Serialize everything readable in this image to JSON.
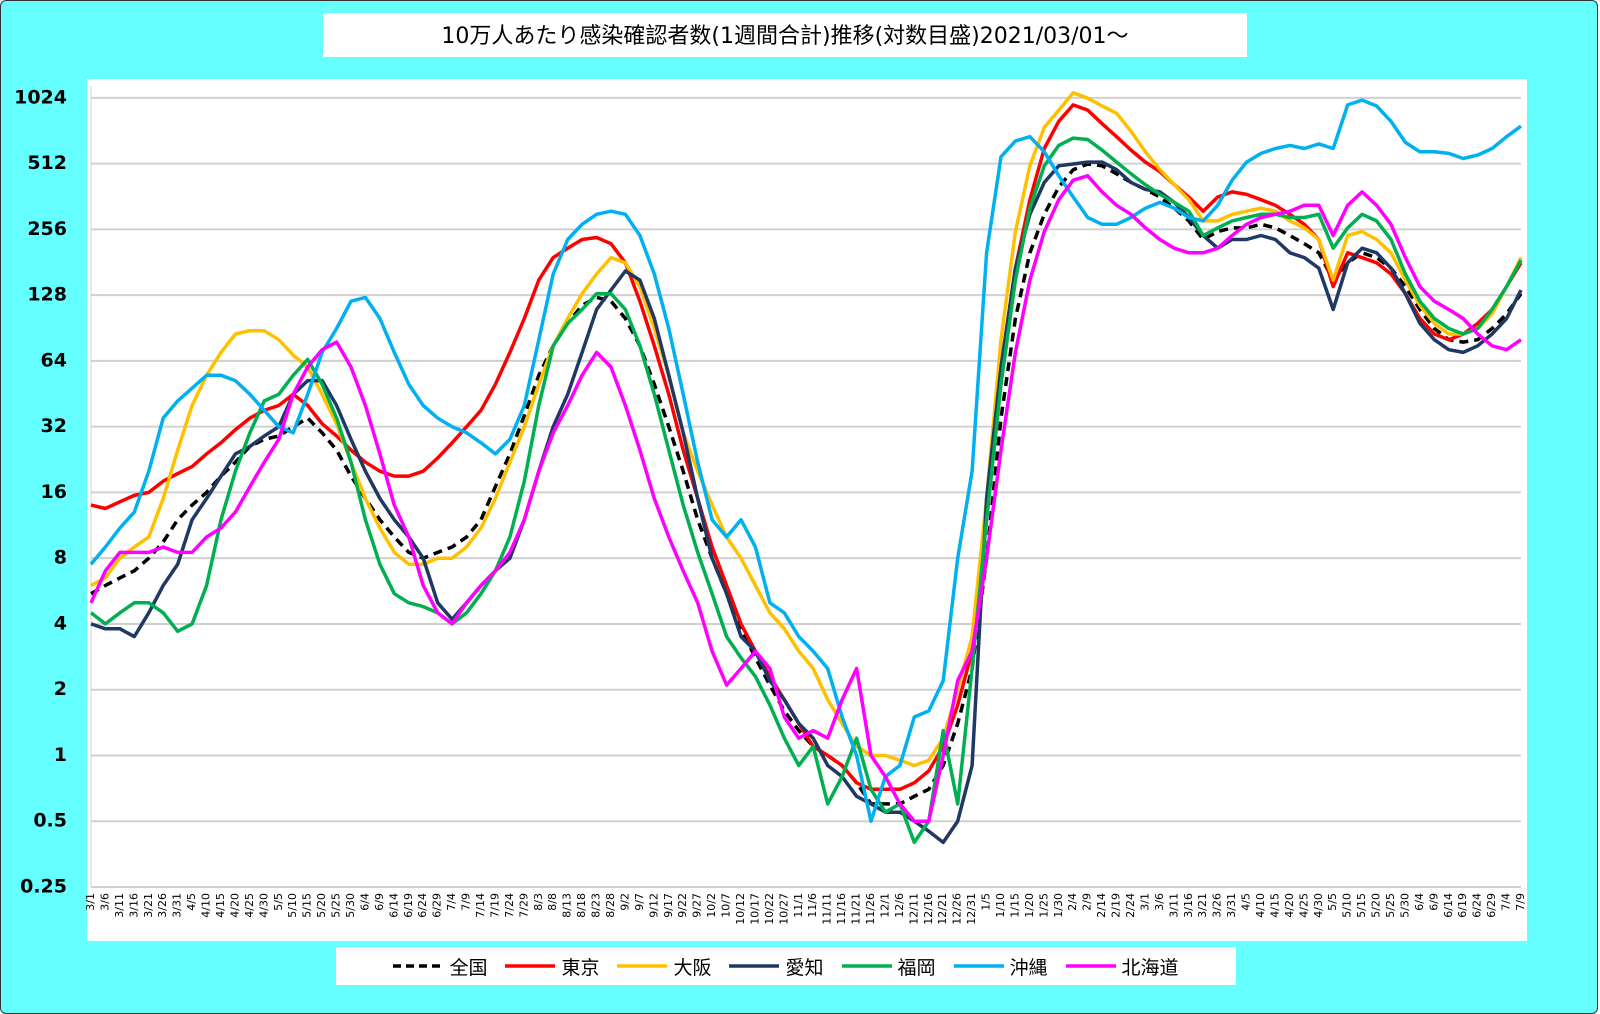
{
  "chart_data": {
    "type": "line",
    "title": "10万人あたり感染確認者数(1週間合計)推移(対数目盛)2021/03/01～",
    "categories": [
      "3/1",
      "3/6",
      "3/11",
      "3/16",
      "3/21",
      "3/26",
      "3/31",
      "4/5",
      "4/10",
      "4/15",
      "4/20",
      "4/25",
      "4/30",
      "5/5",
      "5/10",
      "5/15",
      "5/20",
      "5/25",
      "5/30",
      "6/4",
      "6/9",
      "6/14",
      "6/19",
      "6/24",
      "6/29",
      "7/4",
      "7/9",
      "7/14",
      "7/19",
      "7/24",
      "7/29",
      "8/3",
      "8/8",
      "8/13",
      "8/18",
      "8/23",
      "8/28",
      "9/2",
      "9/7",
      "9/12",
      "9/17",
      "9/22",
      "9/27",
      "10/2",
      "10/7",
      "10/12",
      "10/17",
      "10/22",
      "10/27",
      "11/1",
      "11/6",
      "11/11",
      "11/16",
      "11/21",
      "11/26",
      "12/1",
      "12/6",
      "12/11",
      "12/16",
      "12/21",
      "12/26",
      "12/31",
      "1/5",
      "1/10",
      "1/15",
      "1/20",
      "1/25",
      "1/30",
      "2/4",
      "2/9",
      "2/14",
      "2/19",
      "2/24",
      "3/1",
      "3/6",
      "3/11",
      "3/16",
      "3/21",
      "3/26",
      "3/31",
      "4/5",
      "4/10",
      "4/15",
      "4/20",
      "4/25",
      "4/30",
      "5/5",
      "5/10",
      "5/15",
      "5/20",
      "5/25",
      "5/30",
      "6/4",
      "6/9",
      "6/14",
      "6/19",
      "6/24",
      "6/29",
      "7/4",
      "7/9"
    ],
    "series": [
      {
        "name": "全国",
        "color": "#000000",
        "style": "dashed",
        "values": [
          5.5,
          6,
          6.5,
          7,
          8,
          9.5,
          12,
          14,
          16,
          19,
          22,
          26,
          28,
          29,
          32,
          35,
          30,
          25,
          19,
          15,
          12,
          10,
          8.5,
          8,
          8.5,
          9,
          10,
          12,
          17,
          24,
          36,
          55,
          75,
          95,
          115,
          125,
          120,
          100,
          75,
          50,
          32,
          20,
          12,
          8,
          5.5,
          3.8,
          2.8,
          2.1,
          1.6,
          1.3,
          1.1,
          1.0,
          0.9,
          0.75,
          0.6,
          0.6,
          0.6,
          0.65,
          0.7,
          0.9,
          1.4,
          2.5,
          8,
          35,
          100,
          200,
          300,
          400,
          480,
          510,
          500,
          460,
          420,
          390,
          360,
          320,
          280,
          230,
          250,
          260,
          260,
          270,
          260,
          240,
          220,
          200,
          150,
          180,
          200,
          190,
          170,
          140,
          110,
          90,
          80,
          78,
          80,
          90,
          105,
          130
        ]
      },
      {
        "name": "東京",
        "color": "#ff0000",
        "style": "solid",
        "values": [
          14,
          13.5,
          14.5,
          15.5,
          16,
          18,
          19.5,
          21,
          24,
          27,
          31,
          35,
          38,
          40,
          45,
          40,
          33,
          29,
          25,
          22,
          20,
          19,
          19,
          20,
          23,
          27,
          32,
          38,
          50,
          70,
          100,
          150,
          190,
          210,
          230,
          235,
          220,
          180,
          120,
          75,
          45,
          25,
          15,
          9,
          6,
          4,
          3,
          2.3,
          1.8,
          1.4,
          1.1,
          1.0,
          0.9,
          0.75,
          0.7,
          0.7,
          0.7,
          0.75,
          0.85,
          1.1,
          1.7,
          3,
          12,
          60,
          170,
          350,
          600,
          800,
          950,
          900,
          780,
          680,
          590,
          520,
          470,
          410,
          360,
          310,
          360,
          380,
          370,
          350,
          330,
          300,
          270,
          230,
          140,
          200,
          190,
          180,
          160,
          130,
          100,
          85,
          80,
          85,
          95,
          110,
          140,
          180
        ]
      },
      {
        "name": "大阪",
        "color": "#ffc000",
        "style": "solid",
        "values": [
          6,
          6.5,
          8,
          9,
          10,
          15,
          25,
          40,
          55,
          70,
          85,
          88,
          88,
          80,
          68,
          60,
          45,
          33,
          22,
          15,
          11,
          8.5,
          7.5,
          7.5,
          8,
          8,
          9,
          11,
          15,
          22,
          32,
          50,
          75,
          100,
          130,
          160,
          190,
          180,
          140,
          90,
          55,
          30,
          20,
          14,
          10,
          8,
          6,
          4.5,
          3.8,
          3,
          2.5,
          1.8,
          1.4,
          1.1,
          1.0,
          1.0,
          0.95,
          0.9,
          0.95,
          1.2,
          2,
          3.5,
          15,
          80,
          250,
          500,
          750,
          900,
          1080,
          1020,
          940,
          870,
          720,
          580,
          480,
          410,
          350,
          280,
          280,
          300,
          310,
          320,
          310,
          280,
          260,
          230,
          150,
          240,
          250,
          230,
          200,
          150,
          115,
          95,
          85,
          85,
          90,
          105,
          140,
          190
        ]
      },
      {
        "name": "愛知",
        "color": "#1f3864",
        "style": "solid",
        "values": [
          4,
          3.8,
          3.8,
          3.5,
          4.5,
          6,
          7.5,
          12,
          15,
          19,
          24,
          26,
          29,
          32,
          45,
          52,
          52,
          40,
          28,
          20,
          15,
          12,
          10,
          8,
          5,
          4.2,
          5,
          6,
          7,
          8,
          12,
          20,
          32,
          45,
          70,
          110,
          135,
          165,
          150,
          100,
          55,
          30,
          15,
          8,
          5.5,
          3.5,
          3,
          2.2,
          1.8,
          1.4,
          1.2,
          0.9,
          0.8,
          0.65,
          0.6,
          0.55,
          0.55,
          0.5,
          0.45,
          0.4,
          0.5,
          0.9,
          15,
          60,
          170,
          300,
          420,
          500,
          510,
          520,
          520,
          480,
          420,
          390,
          380,
          340,
          290,
          240,
          210,
          230,
          230,
          240,
          230,
          200,
          190,
          170,
          110,
          180,
          210,
          200,
          170,
          130,
          95,
          80,
          72,
          70,
          75,
          85,
          100,
          135
        ]
      },
      {
        "name": "福岡",
        "color": "#00b050",
        "style": "solid",
        "values": [
          4.5,
          4,
          4.5,
          5,
          5,
          4.5,
          3.7,
          4,
          6,
          12,
          20,
          30,
          42,
          45,
          55,
          65,
          50,
          35,
          22,
          12,
          7.5,
          5.5,
          5,
          4.8,
          4.5,
          4,
          4.5,
          5.5,
          7,
          10,
          18,
          40,
          75,
          95,
          110,
          130,
          130,
          110,
          75,
          45,
          25,
          14,
          8.5,
          5.5,
          3.5,
          2.8,
          2.3,
          1.7,
          1.2,
          0.9,
          1.1,
          0.6,
          0.8,
          1.2,
          0.7,
          0.55,
          0.6,
          0.4,
          0.5,
          1.3,
          0.6,
          2.5,
          12,
          50,
          150,
          320,
          500,
          620,
          670,
          660,
          590,
          520,
          460,
          410,
          370,
          340,
          310,
          240,
          260,
          280,
          290,
          300,
          300,
          290,
          290,
          300,
          210,
          260,
          300,
          280,
          230,
          160,
          120,
          100,
          90,
          85,
          90,
          110,
          140,
          185
        ]
      },
      {
        "name": "沖縄",
        "color": "#00b0f0",
        "style": "solid",
        "values": [
          7.5,
          9,
          11,
          13,
          20,
          35,
          42,
          48,
          55,
          55,
          52,
          45,
          38,
          32,
          30,
          45,
          70,
          90,
          120,
          125,
          100,
          70,
          50,
          40,
          35,
          32,
          30,
          27,
          24,
          28,
          40,
          80,
          160,
          230,
          270,
          300,
          310,
          300,
          240,
          160,
          90,
          45,
          22,
          12,
          10,
          12,
          9,
          5,
          4.5,
          3.5,
          3,
          2.5,
          1.5,
          1.0,
          0.5,
          0.8,
          0.9,
          1.5,
          1.6,
          2.2,
          8,
          20,
          200,
          550,
          650,
          680,
          580,
          450,
          360,
          290,
          270,
          270,
          290,
          320,
          340,
          320,
          290,
          280,
          330,
          430,
          520,
          570,
          600,
          620,
          600,
          630,
          600,
          950,
          1000,
          940,
          800,
          640,
          580,
          580,
          570,
          540,
          560,
          600,
          680,
          760
        ]
      },
      {
        "name": "北海道",
        "color": "#ff00ff",
        "style": "solid",
        "values": [
          5,
          7,
          8.5,
          8.5,
          8.5,
          9,
          8.5,
          8.5,
          10,
          11,
          13,
          17,
          22,
          28,
          45,
          60,
          72,
          78,
          60,
          40,
          24,
          14,
          10,
          6,
          4.5,
          4,
          5,
          6,
          7,
          8.5,
          12,
          20,
          30,
          40,
          55,
          70,
          60,
          40,
          25,
          15,
          10,
          7,
          5,
          3,
          2.1,
          2.5,
          3,
          2.5,
          1.5,
          1.2,
          1.3,
          1.2,
          1.8,
          2.5,
          1.0,
          0.8,
          0.6,
          0.5,
          0.5,
          1.0,
          2.2,
          3,
          8,
          25,
          70,
          150,
          250,
          350,
          430,
          450,
          380,
          330,
          300,
          260,
          230,
          210,
          200,
          200,
          210,
          240,
          270,
          290,
          300,
          310,
          330,
          330,
          240,
          330,
          380,
          330,
          270,
          190,
          140,
          120,
          110,
          100,
          85,
          75,
          72,
          80
        ]
      }
    ],
    "ylim": [
      0.25,
      1160
    ],
    "yticks": [
      0.25,
      0.5,
      1,
      2,
      4,
      8,
      16,
      32,
      64,
      128,
      256,
      512,
      1024
    ],
    "log_scale": 2,
    "grid": true,
    "legend": "bottom"
  }
}
